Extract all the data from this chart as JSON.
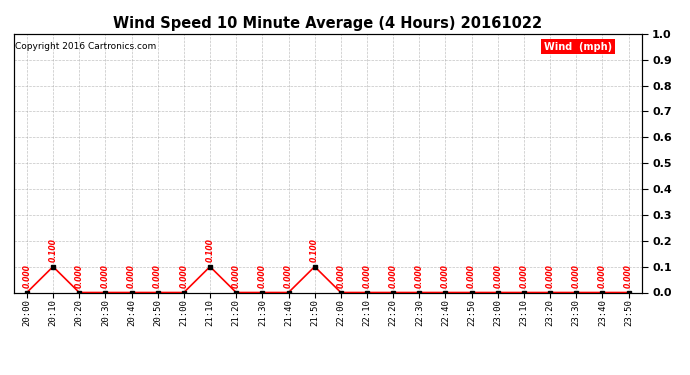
{
  "title": "Wind Speed 10 Minute Average (4 Hours) 20161022",
  "copyright": "Copyright 2016 Cartronics.com",
  "legend_label": "Wind  (mph)",
  "line_color": "#ff0000",
  "marker_color": "#000000",
  "text_color": "#ff0000",
  "title_color": "#000000",
  "ylim": [
    0.0,
    1.0
  ],
  "yticks": [
    0.0,
    0.1,
    0.2,
    0.3,
    0.4,
    0.5,
    0.6,
    0.7,
    0.8,
    0.9,
    1.0
  ],
  "bg_color": "#ffffff",
  "grid_color": "#aaaaaa",
  "x_labels": [
    "20:00",
    "20:10",
    "20:20",
    "20:30",
    "20:40",
    "20:50",
    "21:00",
    "21:10",
    "21:20",
    "21:30",
    "21:40",
    "21:50",
    "22:00",
    "22:10",
    "22:20",
    "22:30",
    "22:40",
    "22:50",
    "23:00",
    "23:10",
    "23:20",
    "23:30",
    "23:40",
    "23:50"
  ],
  "wind_values": [
    0.0,
    0.1,
    0.0,
    0.0,
    0.0,
    0.0,
    0.0,
    0.1,
    0.0,
    0.0,
    0.0,
    0.1,
    0.0,
    0.0,
    0.0,
    0.0,
    0.0,
    0.0,
    0.0,
    0.0,
    0.0,
    0.0,
    0.0,
    0.0
  ]
}
